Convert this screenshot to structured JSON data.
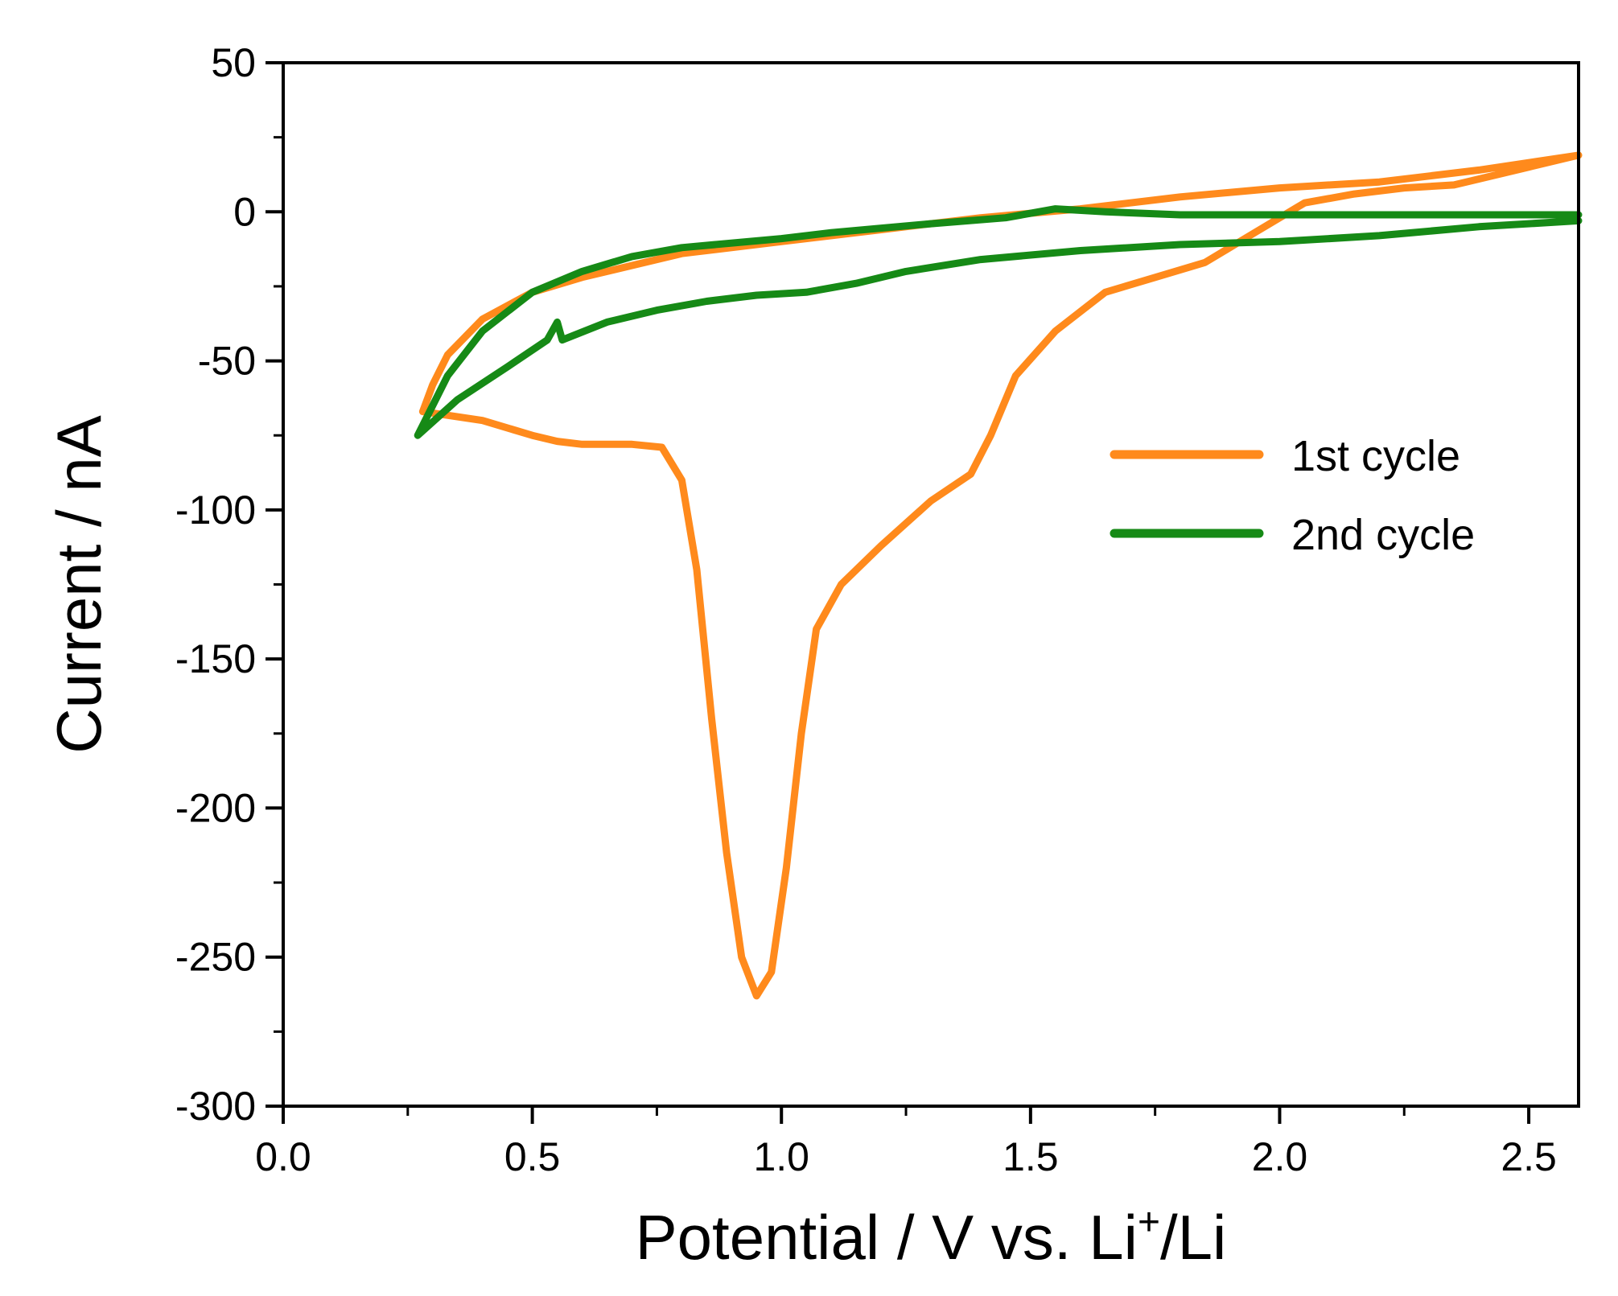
{
  "chart_data": {
    "type": "line",
    "xlabel": "Potential / V vs. Li",
    "xlabel_superscript": "+",
    "xlabel_suffix": "/Li",
    "ylabel": "Current / nA",
    "xlim": [
      0.0,
      2.6
    ],
    "ylim": [
      -300,
      50
    ],
    "x_ticks": [
      0.0,
      0.5,
      1.0,
      1.5,
      2.0,
      2.5
    ],
    "x_tick_labels": [
      "0.0",
      "0.5",
      "1.0",
      "1.5",
      "2.0",
      "2.5"
    ],
    "y_ticks": [
      50,
      0,
      -50,
      -100,
      -150,
      -200,
      -250,
      -300
    ],
    "y_tick_labels": [
      "50",
      "0",
      "-50",
      "-100",
      "-150",
      "-200",
      "-250",
      "-300"
    ],
    "legend_position": "right",
    "series": [
      {
        "name": "1st cycle",
        "color": "#ff8a1c",
        "points": [
          [
            2.6,
            19
          ],
          [
            2.4,
            14
          ],
          [
            2.2,
            10
          ],
          [
            2.0,
            8
          ],
          [
            1.8,
            5
          ],
          [
            1.6,
            1
          ],
          [
            1.4,
            -2
          ],
          [
            1.2,
            -6
          ],
          [
            1.0,
            -10
          ],
          [
            0.8,
            -14
          ],
          [
            0.6,
            -22
          ],
          [
            0.5,
            -27
          ],
          [
            0.4,
            -36
          ],
          [
            0.33,
            -48
          ],
          [
            0.3,
            -58
          ],
          [
            0.28,
            -67
          ],
          [
            0.32,
            -68
          ],
          [
            0.4,
            -70
          ],
          [
            0.5,
            -75
          ],
          [
            0.55,
            -77
          ],
          [
            0.6,
            -78
          ],
          [
            0.7,
            -78
          ],
          [
            0.76,
            -79
          ],
          [
            0.8,
            -90
          ],
          [
            0.83,
            -120
          ],
          [
            0.86,
            -170
          ],
          [
            0.89,
            -215
          ],
          [
            0.92,
            -250
          ],
          [
            0.95,
            -263
          ],
          [
            0.98,
            -255
          ],
          [
            1.01,
            -220
          ],
          [
            1.04,
            -175
          ],
          [
            1.07,
            -140
          ],
          [
            1.12,
            -125
          ],
          [
            1.2,
            -112
          ],
          [
            1.3,
            -97
          ],
          [
            1.38,
            -88
          ],
          [
            1.42,
            -75
          ],
          [
            1.47,
            -55
          ],
          [
            1.55,
            -40
          ],
          [
            1.65,
            -27
          ],
          [
            1.75,
            -22
          ],
          [
            1.85,
            -17
          ],
          [
            1.95,
            -7
          ],
          [
            2.05,
            3
          ],
          [
            2.15,
            6
          ],
          [
            2.25,
            8
          ],
          [
            2.35,
            9
          ],
          [
            2.4,
            11
          ],
          [
            2.5,
            15
          ],
          [
            2.6,
            19
          ]
        ]
      },
      {
        "name": "2nd cycle",
        "color": "#168a16",
        "points": [
          [
            2.6,
            -1
          ],
          [
            2.4,
            -1
          ],
          [
            2.2,
            -1
          ],
          [
            2.0,
            -1
          ],
          [
            1.8,
            -1
          ],
          [
            1.65,
            0
          ],
          [
            1.55,
            1
          ],
          [
            1.45,
            -2
          ],
          [
            1.3,
            -4
          ],
          [
            1.1,
            -7
          ],
          [
            1.0,
            -9
          ],
          [
            0.8,
            -12
          ],
          [
            0.7,
            -15
          ],
          [
            0.6,
            -20
          ],
          [
            0.5,
            -27
          ],
          [
            0.4,
            -40
          ],
          [
            0.33,
            -55
          ],
          [
            0.27,
            -75
          ],
          [
            0.35,
            -63
          ],
          [
            0.45,
            -52
          ],
          [
            0.53,
            -43
          ],
          [
            0.55,
            -37
          ],
          [
            0.56,
            -43
          ],
          [
            0.65,
            -37
          ],
          [
            0.75,
            -33
          ],
          [
            0.85,
            -30
          ],
          [
            0.95,
            -28
          ],
          [
            1.05,
            -27
          ],
          [
            1.15,
            -24
          ],
          [
            1.25,
            -20
          ],
          [
            1.4,
            -16
          ],
          [
            1.6,
            -13
          ],
          [
            1.8,
            -11
          ],
          [
            2.0,
            -10
          ],
          [
            2.2,
            -8
          ],
          [
            2.4,
            -5
          ],
          [
            2.6,
            -3
          ]
        ]
      }
    ]
  }
}
